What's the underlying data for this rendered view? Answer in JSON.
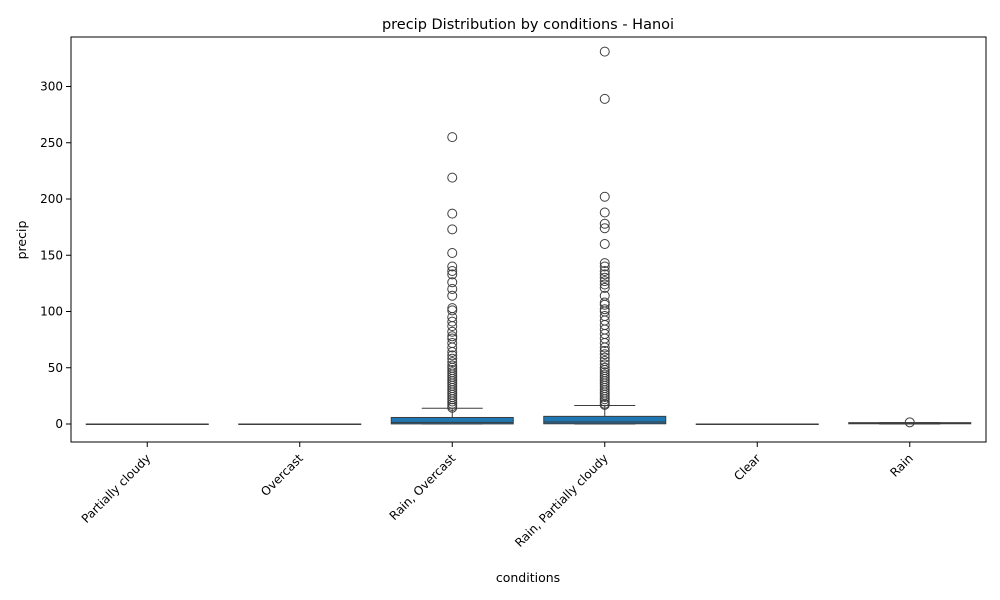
{
  "chart_data": {
    "type": "box",
    "title": "precip Distribution by conditions - Hanoi",
    "xlabel": "conditions",
    "ylabel": "precip",
    "ylim": [
      -16,
      344
    ],
    "yticks": [
      0,
      50,
      100,
      150,
      200,
      250,
      300
    ],
    "grid": false,
    "colors": {
      "box_fill": "#1f77b4",
      "line": "#3d3d3d",
      "flier": "#3d3d3d"
    },
    "categories": [
      "Partially cloudy",
      "Overcast",
      "Rain, Overcast",
      "Rain, Partially cloudy",
      "Clear",
      "Rain"
    ],
    "boxes": [
      {
        "category": "Partially cloudy",
        "whislo": 0,
        "q1": 0,
        "median": 0,
        "q3": 0,
        "whishi": 0,
        "fliers": []
      },
      {
        "category": "Overcast",
        "whislo": 0,
        "q1": 0,
        "median": 0,
        "q3": 0,
        "whishi": 0,
        "fliers": []
      },
      {
        "category": "Rain, Overcast",
        "whislo": 0,
        "q1": 0.1,
        "median": 1.5,
        "q3": 5.8,
        "whishi": 14.0,
        "fliers": [
          255,
          219,
          187,
          173,
          152,
          140,
          136,
          133,
          126,
          120,
          114,
          103,
          101,
          95,
          91,
          87,
          82,
          78,
          76,
          72,
          68,
          64,
          61,
          58,
          55,
          52,
          50,
          48,
          46,
          44,
          42,
          40,
          38,
          36,
          34,
          32,
          30,
          28,
          26,
          24,
          22,
          20,
          18,
          16,
          14.5
        ]
      },
      {
        "category": "Rain, Partially cloudy",
        "whislo": 0,
        "q1": 0.2,
        "median": 1.8,
        "q3": 6.8,
        "whishi": 16.5,
        "fliers": [
          331,
          289,
          202,
          188,
          178,
          174,
          160,
          143,
          140,
          136,
          133,
          130,
          127,
          124,
          121,
          114,
          108,
          106,
          102,
          100,
          96,
          92,
          88,
          84,
          80,
          76,
          72,
          68,
          65,
          62,
          59,
          56,
          53,
          50,
          48,
          46,
          44,
          42,
          40,
          38,
          36,
          34,
          32,
          30,
          28,
          26,
          24,
          22,
          20,
          18,
          17
        ]
      },
      {
        "category": "Clear",
        "whislo": 0,
        "q1": 0,
        "median": 0,
        "q3": 0,
        "whishi": 0,
        "fliers": []
      },
      {
        "category": "Rain",
        "whislo": 0,
        "q1": 0.2,
        "median": 0.6,
        "q3": 1.2,
        "whishi": 1.2,
        "fliers": [
          1.5
        ]
      }
    ]
  }
}
